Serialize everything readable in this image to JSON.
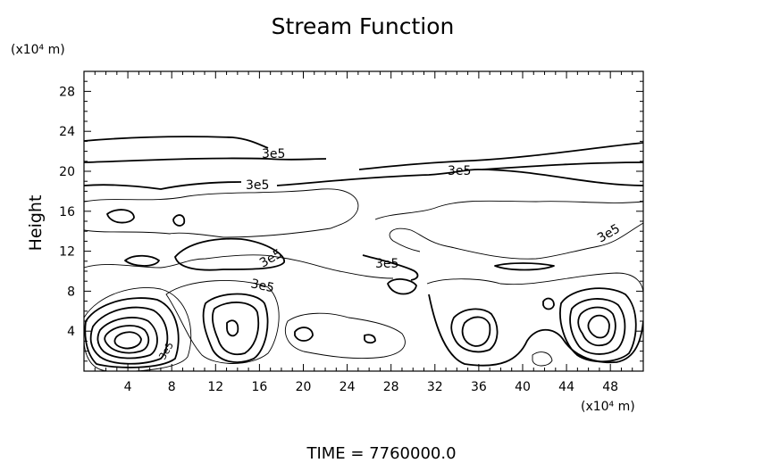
{
  "chart_data": {
    "type": "contour",
    "title": "Stream Function",
    "ylabel": "Height",
    "y_unit_label": "(x10⁴ m)",
    "x_unit_label": "(x10⁴ m)",
    "xlim": [
      0,
      51
    ],
    "ylim": [
      0,
      30
    ],
    "x_ticks": [
      4,
      8,
      12,
      16,
      20,
      24,
      28,
      32,
      36,
      40,
      44,
      48
    ],
    "y_ticks": [
      4,
      8,
      12,
      16,
      20,
      24,
      28
    ],
    "grid": false,
    "contour_labels": [
      "3e5",
      "3e5",
      "3e5",
      "3e5",
      "3e5",
      "3e5",
      "3e5",
      "3e5"
    ],
    "time_label": "TIME  =  7760000.0",
    "line_color": "#000000"
  }
}
